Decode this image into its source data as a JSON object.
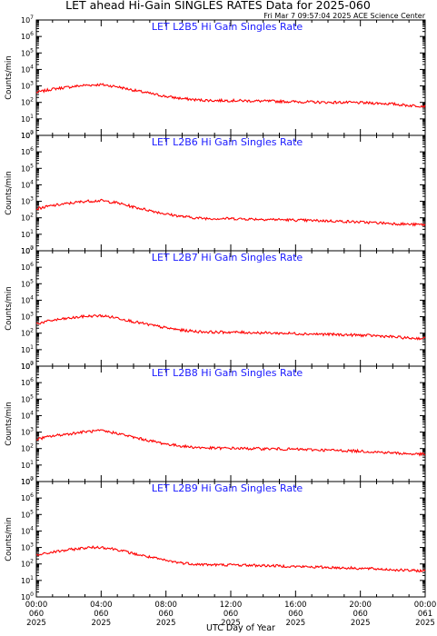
{
  "figure": {
    "title": "LET ahead Hi-Gain SINGLES RATES Data for 2025-060",
    "timestamp": "Fri Mar  7 09:57:04 2025 ACE Science Center",
    "xlabel": "UTC Day of Year"
  },
  "colors": {
    "trace": "#ff0000",
    "panel_title": "#1a1aff",
    "axes": "#000000"
  },
  "chart_data": [
    {
      "type": "line",
      "title": "LET L2B5 Hi Gain Singles Rate",
      "ylabel": "Counts/min",
      "yscale": "log",
      "ylim": [
        1,
        10000000
      ],
      "ytick_labels": [
        "10^0",
        "10^1",
        "10^2",
        "10^3",
        "10^4",
        "10^5",
        "10^6",
        "10^7"
      ],
      "xlim": [
        0,
        24
      ],
      "xtick_labels": [
        [
          "00:00",
          "060",
          "2025"
        ],
        [
          "04:00",
          "060",
          "2025"
        ],
        [
          "08:00",
          "060",
          "2025"
        ],
        [
          "12:00",
          "060",
          "2025"
        ],
        [
          "16:00",
          "060",
          "2025"
        ],
        [
          "20:00",
          "060",
          "2025"
        ],
        [
          "00:00",
          "061",
          "2025"
        ]
      ],
      "x": [
        0,
        1,
        2,
        3,
        4,
        5,
        6,
        7,
        8,
        9,
        10,
        11,
        12,
        13,
        14,
        15,
        16,
        17,
        18,
        19,
        20,
        21,
        22,
        23,
        24
      ],
      "values": [
        400,
        650,
        850,
        1100,
        1200,
        900,
        550,
        350,
        230,
        170,
        140,
        130,
        130,
        125,
        120,
        115,
        110,
        105,
        100,
        100,
        95,
        90,
        80,
        65,
        60
      ]
    },
    {
      "type": "line",
      "title": "LET L2B6 Hi Gain Singles Rate",
      "ylabel": "Counts/min",
      "yscale": "log",
      "ylim": [
        1,
        10000000
      ],
      "ytick_labels": [
        "10^0",
        "10^1",
        "10^2",
        "10^3",
        "10^4",
        "10^5",
        "10^6",
        "10^7"
      ],
      "xlim": [
        0,
        24
      ],
      "xtick_labels": [
        [
          "00:00",
          "060",
          "2025"
        ],
        [
          "04:00",
          "060",
          "2025"
        ],
        [
          "08:00",
          "060",
          "2025"
        ],
        [
          "12:00",
          "060",
          "2025"
        ],
        [
          "16:00",
          "060",
          "2025"
        ],
        [
          "20:00",
          "060",
          "2025"
        ],
        [
          "00:00",
          "061",
          "2025"
        ]
      ],
      "x": [
        0,
        1,
        2,
        3,
        4,
        5,
        6,
        7,
        8,
        9,
        10,
        11,
        12,
        13,
        14,
        15,
        16,
        17,
        18,
        19,
        20,
        21,
        22,
        23,
        24
      ],
      "values": [
        350,
        550,
        750,
        1000,
        1100,
        800,
        450,
        280,
        170,
        120,
        95,
        90,
        90,
        85,
        82,
        78,
        72,
        68,
        65,
        60,
        55,
        50,
        45,
        40,
        38
      ]
    },
    {
      "type": "line",
      "title": "LET L2B7 Hi Gain Singles Rate",
      "ylabel": "Counts/min",
      "yscale": "log",
      "ylim": [
        1,
        10000000
      ],
      "ytick_labels": [
        "10^0",
        "10^1",
        "10^2",
        "10^3",
        "10^4",
        "10^5",
        "10^6",
        "10^7"
      ],
      "xlim": [
        0,
        24
      ],
      "xtick_labels": [
        [
          "00:00",
          "060",
          "2025"
        ],
        [
          "04:00",
          "060",
          "2025"
        ],
        [
          "08:00",
          "060",
          "2025"
        ],
        [
          "12:00",
          "060",
          "2025"
        ],
        [
          "16:00",
          "060",
          "2025"
        ],
        [
          "20:00",
          "060",
          "2025"
        ],
        [
          "00:00",
          "061",
          "2025"
        ]
      ],
      "x": [
        0,
        1,
        2,
        3,
        4,
        5,
        6,
        7,
        8,
        9,
        10,
        11,
        12,
        13,
        14,
        15,
        16,
        17,
        18,
        19,
        20,
        21,
        22,
        23,
        24
      ],
      "values": [
        380,
        600,
        800,
        1050,
        1150,
        850,
        500,
        320,
        210,
        150,
        125,
        115,
        115,
        110,
        105,
        100,
        95,
        90,
        85,
        80,
        75,
        70,
        60,
        50,
        48
      ]
    },
    {
      "type": "line",
      "title": "LET L2B8 Hi Gain Singles Rate",
      "ylabel": "Counts/min",
      "yscale": "log",
      "ylim": [
        1,
        10000000
      ],
      "ytick_labels": [
        "10^0",
        "10^1",
        "10^2",
        "10^3",
        "10^4",
        "10^5",
        "10^6",
        "10^7"
      ],
      "xlim": [
        0,
        24
      ],
      "xtick_labels": [
        [
          "00:00",
          "060",
          "2025"
        ],
        [
          "04:00",
          "060",
          "2025"
        ],
        [
          "08:00",
          "060",
          "2025"
        ],
        [
          "12:00",
          "060",
          "2025"
        ],
        [
          "16:00",
          "060",
          "2025"
        ],
        [
          "20:00",
          "060",
          "2025"
        ],
        [
          "00:00",
          "061",
          "2025"
        ]
      ],
      "x": [
        0,
        1,
        2,
        3,
        4,
        5,
        6,
        7,
        8,
        9,
        10,
        11,
        12,
        13,
        14,
        15,
        16,
        17,
        18,
        19,
        20,
        21,
        22,
        23,
        24
      ],
      "values": [
        370,
        580,
        780,
        1050,
        1200,
        850,
        480,
        300,
        190,
        140,
        115,
        105,
        105,
        100,
        98,
        95,
        90,
        85,
        80,
        75,
        70,
        62,
        55,
        48,
        45
      ]
    },
    {
      "type": "line",
      "title": "LET L2B9 Hi Gain Singles Rate",
      "ylabel": "Counts/min",
      "yscale": "log",
      "ylim": [
        1,
        10000000
      ],
      "ytick_labels": [
        "10^0",
        "10^1",
        "10^2",
        "10^3",
        "10^4",
        "10^5",
        "10^6",
        "10^7"
      ],
      "xlim": [
        0,
        24
      ],
      "xtick_labels": [
        [
          "00:00",
          "060",
          "2025"
        ],
        [
          "04:00",
          "060",
          "2025"
        ],
        [
          "08:00",
          "060",
          "2025"
        ],
        [
          "12:00",
          "060",
          "2025"
        ],
        [
          "16:00",
          "060",
          "2025"
        ],
        [
          "20:00",
          "060",
          "2025"
        ],
        [
          "00:00",
          "061",
          "2025"
        ]
      ],
      "x": [
        0,
        1,
        2,
        3,
        4,
        5,
        6,
        7,
        8,
        9,
        10,
        11,
        12,
        13,
        14,
        15,
        16,
        17,
        18,
        19,
        20,
        21,
        22,
        23,
        24
      ],
      "values": [
        330,
        520,
        720,
        950,
        1050,
        750,
        420,
        260,
        160,
        115,
        95,
        88,
        88,
        84,
        80,
        76,
        70,
        66,
        62,
        58,
        54,
        50,
        45,
        40,
        38
      ]
    }
  ]
}
